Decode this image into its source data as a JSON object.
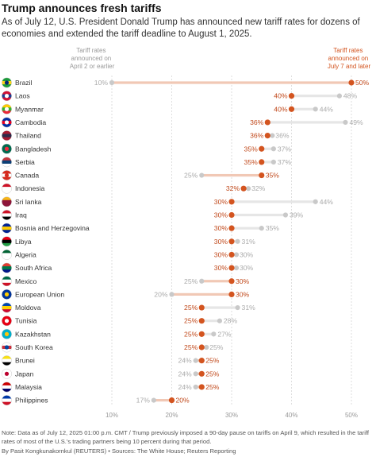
{
  "title": "Trump announces fresh tariffs",
  "subtitle": "As of July 12, U.S. President Donald Trump has announced new tariff rates for dozens of economies and extended the tariff deadline to August 1, 2025.",
  "legend": {
    "old_label": "Tariff rates announced on April 2 or earlier",
    "new_label": "Tariff rates announced on July 7 and later"
  },
  "note": "Note: Data as of July 12, 2025 01:00 p.m. CMT / Trump previously imposed a 90-day pause on tariffs on April 9, which resulted in the tariff rates of most of the U.S.'s trading partners being 10 percent during that period.",
  "credit": "By Pasit Kongkunakornkul (REUTERS) • Sources: The White House; Reuters Reporting",
  "colors": {
    "new": "#d3541f",
    "old": "#c9c9c9",
    "new_text": "#c0481a",
    "old_text": "#aaaaaa"
  },
  "chart_data": {
    "type": "dot-plot",
    "xlim": [
      10,
      50
    ],
    "x_ticks": [
      "10%",
      "20%",
      "30%",
      "40%",
      "50%"
    ],
    "tick_values": [
      10,
      20,
      30,
      40,
      50
    ],
    "grid": true,
    "series": [
      {
        "name": "Tariff rates announced on April 2 or earlier",
        "key": "old"
      },
      {
        "name": "Tariff rates announced on July 7 and later",
        "key": "new"
      }
    ],
    "rows": [
      {
        "country": "Brazil",
        "old": 10,
        "new": 50,
        "flag": "brazil-flag"
      },
      {
        "country": "Laos",
        "old": 48,
        "new": 40,
        "flag": "laos-flag"
      },
      {
        "country": "Myanmar",
        "old": 44,
        "new": 40,
        "flag": "myanmar-flag"
      },
      {
        "country": "Cambodia",
        "old": 49,
        "new": 36,
        "flag": "cambodia-flag"
      },
      {
        "country": "Thailand",
        "old": 36,
        "new": 36,
        "flag": "thailand-flag"
      },
      {
        "country": "Bangladesh",
        "old": 37,
        "new": 35,
        "flag": "bangladesh-flag"
      },
      {
        "country": "Serbia",
        "old": 37,
        "new": 35,
        "flag": "serbia-flag"
      },
      {
        "country": "Canada",
        "old": 25,
        "new": 35,
        "flag": "canada-flag"
      },
      {
        "country": "Indonesia",
        "old": 32,
        "new": 32,
        "flag": "indonesia-flag"
      },
      {
        "country": "Sri lanka",
        "old": 44,
        "new": 30,
        "flag": "sri-lanka-flag"
      },
      {
        "country": "Iraq",
        "old": 39,
        "new": 30,
        "flag": "iraq-flag"
      },
      {
        "country": "Bosnia and Herzegovina",
        "old": 35,
        "new": 30,
        "flag": "bosnia-flag"
      },
      {
        "country": "Libya",
        "old": 31,
        "new": 30,
        "flag": "libya-flag"
      },
      {
        "country": "Algeria",
        "old": 30,
        "new": 30,
        "flag": "algeria-flag"
      },
      {
        "country": "South Africa",
        "old": 30,
        "new": 30,
        "flag": "south-africa-flag"
      },
      {
        "country": "Mexico",
        "old": 25,
        "new": 30,
        "flag": "mexico-flag"
      },
      {
        "country": "European Union",
        "old": 20,
        "new": 30,
        "flag": "eu-flag"
      },
      {
        "country": "Moldova",
        "old": 31,
        "new": 25,
        "flag": "moldova-flag"
      },
      {
        "country": "Tunisia",
        "old": 28,
        "new": 25,
        "flag": "tunisia-flag"
      },
      {
        "country": "Kazakhstan",
        "old": 27,
        "new": 25,
        "flag": "kazakhstan-flag"
      },
      {
        "country": "South Korea",
        "old": 25,
        "new": 25,
        "flag": "south-korea-flag"
      },
      {
        "country": "Brunei",
        "old": 24,
        "new": 25,
        "flag": "brunei-flag"
      },
      {
        "country": "Japan",
        "old": 24,
        "new": 25,
        "flag": "japan-flag"
      },
      {
        "country": "Malaysia",
        "old": 24,
        "new": 25,
        "flag": "malaysia-flag"
      },
      {
        "country": "Philippines",
        "old": 17,
        "new": 20,
        "flag": "philippines-flag"
      }
    ]
  }
}
